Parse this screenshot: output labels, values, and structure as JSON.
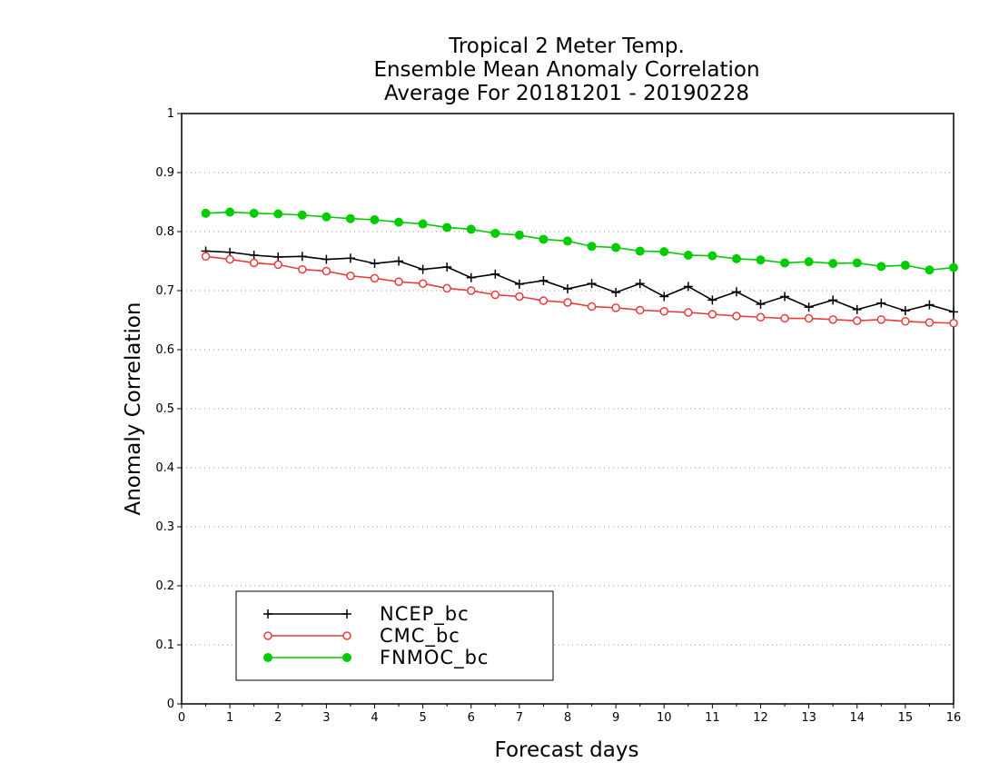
{
  "chart_data": {
    "type": "line",
    "title": [
      "Tropical 2 Meter Temp.",
      "Ensemble Mean Anomaly Correlation",
      "Average For 20181201 - 20190228"
    ],
    "xlabel": "Forecast days",
    "ylabel": "Anomaly Correlation",
    "xlim": [
      0,
      16
    ],
    "ylim": [
      0,
      1
    ],
    "xticks": [
      "0",
      "1",
      "2",
      "3",
      "4",
      "5",
      "6",
      "7",
      "8",
      "9",
      "10",
      "11",
      "12",
      "13",
      "14",
      "15",
      "16"
    ],
    "yticks": [
      "0",
      "0.1",
      "0.2",
      "0.3",
      "0.4",
      "0.5",
      "0.6",
      "0.7",
      "0.8",
      "0.9",
      "1"
    ],
    "grid": "horizontal-dotted",
    "legend_position": "bottom-left",
    "x": [
      0.5,
      1,
      1.5,
      2,
      2.5,
      3,
      3.5,
      4,
      4.5,
      5,
      5.5,
      6,
      6.5,
      7,
      7.5,
      8,
      8.5,
      9,
      9.5,
      10,
      10.5,
      11,
      11.5,
      12,
      12.5,
      13,
      13.5,
      14,
      14.5,
      15,
      15.5,
      16
    ],
    "series": [
      {
        "name": "NCEP_bc",
        "color": "#000000",
        "marker": "plus",
        "values": [
          0.767,
          0.765,
          0.76,
          0.757,
          0.758,
          0.753,
          0.755,
          0.746,
          0.75,
          0.736,
          0.74,
          0.722,
          0.728,
          0.711,
          0.717,
          0.703,
          0.712,
          0.697,
          0.712,
          0.69,
          0.707,
          0.684,
          0.698,
          0.677,
          0.69,
          0.672,
          0.684,
          0.668,
          0.679,
          0.666,
          0.676,
          0.664
        ]
      },
      {
        "name": "CMC_bc",
        "color": "#e83c3c",
        "marker": "open-circle",
        "values": [
          0.758,
          0.753,
          0.747,
          0.744,
          0.736,
          0.733,
          0.725,
          0.721,
          0.715,
          0.712,
          0.704,
          0.7,
          0.693,
          0.69,
          0.683,
          0.68,
          0.673,
          0.671,
          0.667,
          0.665,
          0.663,
          0.66,
          0.657,
          0.655,
          0.653,
          0.653,
          0.651,
          0.649,
          0.651,
          0.648,
          0.646,
          0.645
        ]
      },
      {
        "name": "FNMOC_bc",
        "color": "#00cc00",
        "marker": "filled-circle",
        "values": [
          0.831,
          0.833,
          0.831,
          0.83,
          0.828,
          0.825,
          0.822,
          0.82,
          0.816,
          0.813,
          0.807,
          0.804,
          0.797,
          0.794,
          0.787,
          0.784,
          0.775,
          0.773,
          0.767,
          0.766,
          0.76,
          0.759,
          0.754,
          0.752,
          0.747,
          0.749,
          0.746,
          0.747,
          0.741,
          0.743,
          0.735,
          0.739
        ]
      }
    ]
  }
}
